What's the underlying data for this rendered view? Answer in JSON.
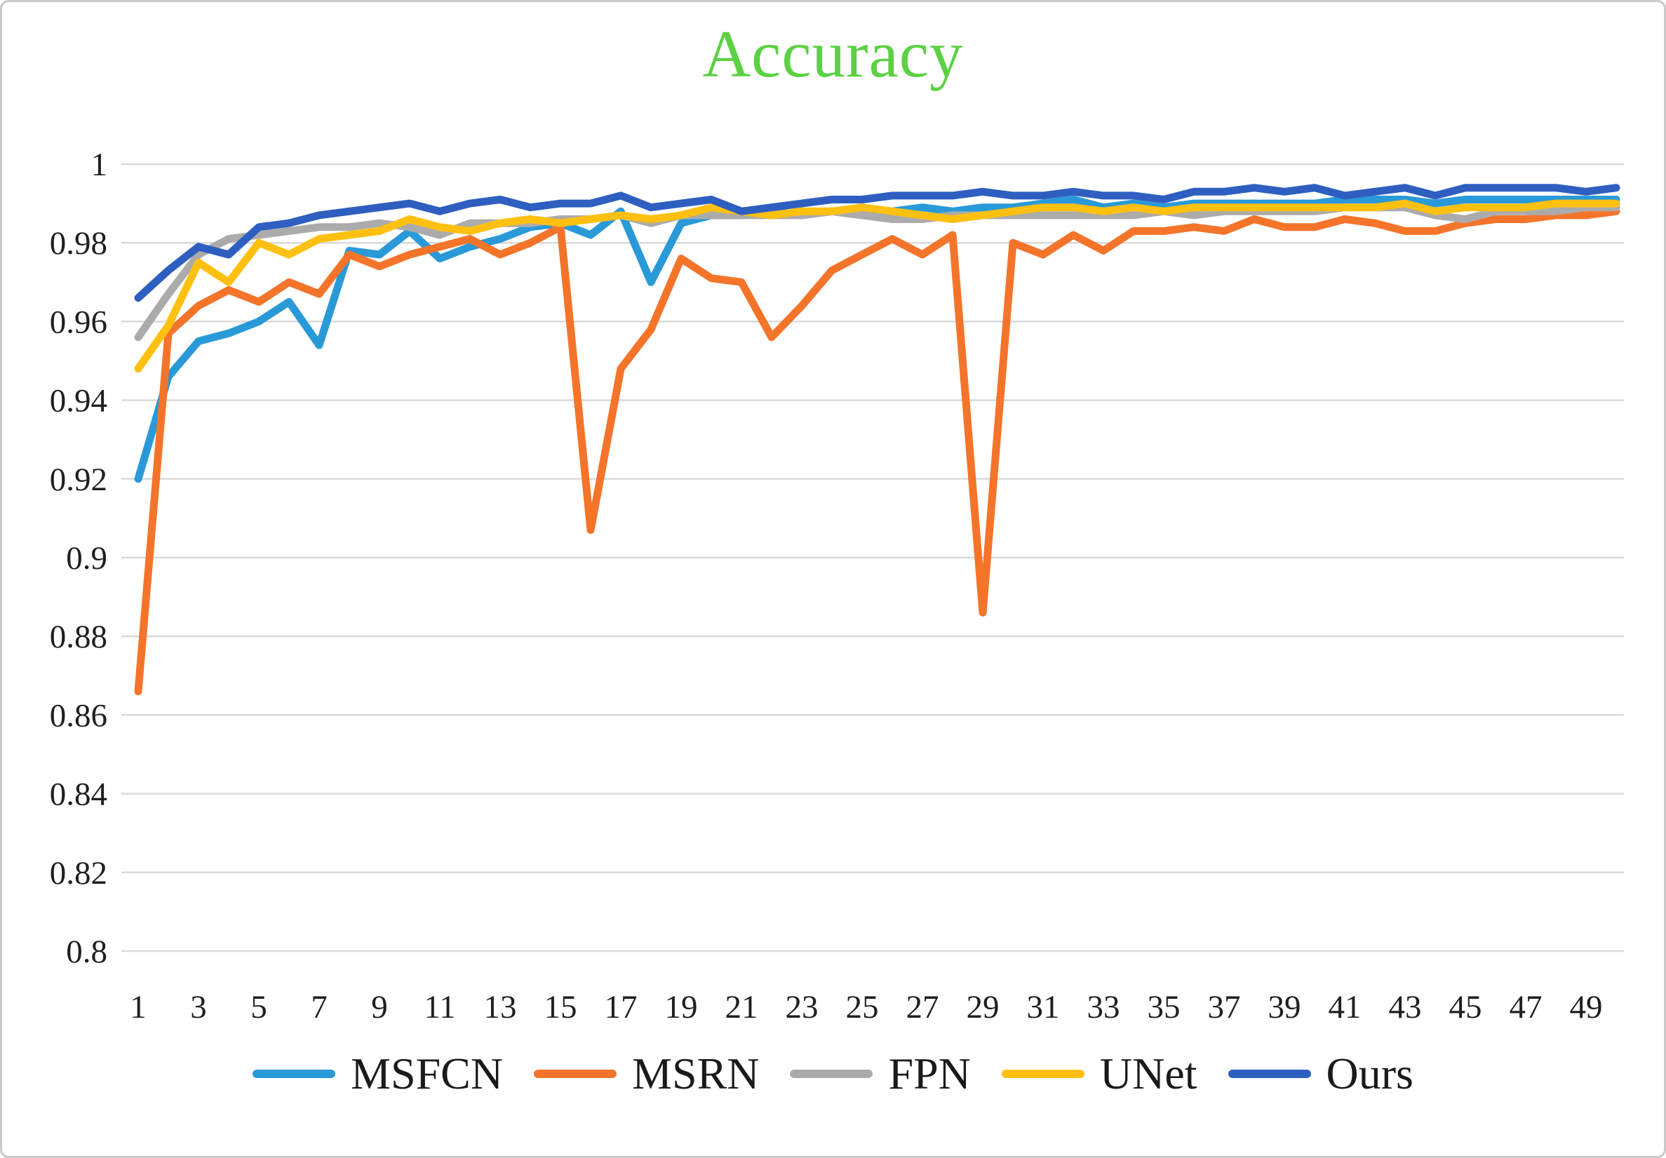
{
  "figure": {
    "border_color": "#c9c9c9",
    "background": "#ffffff"
  },
  "chart_data": {
    "type": "line",
    "title": "Accuracy",
    "title_color": "#5bd143",
    "gridline_color": "#d9d9d9",
    "tick_color": "#1f1f1f",
    "grid": true,
    "legend_position": "bottom",
    "x_range": [
      1,
      50
    ],
    "xticks": [
      1,
      3,
      5,
      7,
      9,
      11,
      13,
      15,
      17,
      19,
      21,
      23,
      25,
      27,
      29,
      31,
      33,
      35,
      37,
      39,
      41,
      43,
      45,
      47,
      49
    ],
    "ylim": [
      0.8,
      1.0
    ],
    "yticks": [
      {
        "label": "1",
        "value": 1.0
      },
      {
        "label": "0.98",
        "value": 0.98
      },
      {
        "label": "0.96",
        "value": 0.96
      },
      {
        "label": "0.94",
        "value": 0.94
      },
      {
        "label": "0.92",
        "value": 0.92
      },
      {
        "label": "0.9",
        "value": 0.9
      },
      {
        "label": "0.88",
        "value": 0.88
      },
      {
        "label": "0.86",
        "value": 0.86
      },
      {
        "label": "0.84",
        "value": 0.84
      },
      {
        "label": "0.82",
        "value": 0.82
      },
      {
        "label": "0.8",
        "value": 0.8
      }
    ],
    "series": [
      {
        "name": "MSFCN",
        "color": "#2999d8",
        "values": [
          0.92,
          0.946,
          0.955,
          0.957,
          0.96,
          0.965,
          0.954,
          0.978,
          0.977,
          0.983,
          0.976,
          0.979,
          0.981,
          0.984,
          0.985,
          0.982,
          0.988,
          0.97,
          0.985,
          0.987,
          0.987,
          0.988,
          0.987,
          0.988,
          0.987,
          0.988,
          0.989,
          0.988,
          0.989,
          0.989,
          0.99,
          0.991,
          0.989,
          0.99,
          0.989,
          0.99,
          0.99,
          0.99,
          0.99,
          0.99,
          0.991,
          0.991,
          0.991,
          0.99,
          0.991,
          0.991,
          0.991,
          0.991,
          0.991,
          0.991
        ]
      },
      {
        "name": "MSRN",
        "color": "#f4742a",
        "values": [
          0.866,
          0.957,
          0.964,
          0.968,
          0.965,
          0.97,
          0.967,
          0.977,
          0.974,
          0.977,
          0.979,
          0.981,
          0.977,
          0.98,
          0.984,
          0.907,
          0.948,
          0.958,
          0.976,
          0.971,
          0.97,
          0.956,
          0.964,
          0.973,
          0.977,
          0.981,
          0.977,
          0.982,
          0.886,
          0.98,
          0.977,
          0.982,
          0.978,
          0.983,
          0.983,
          0.984,
          0.983,
          0.986,
          0.984,
          0.984,
          0.986,
          0.985,
          0.983,
          0.983,
          0.985,
          0.986,
          0.986,
          0.987,
          0.987,
          0.988
        ]
      },
      {
        "name": "FPN",
        "color": "#ababab",
        "values": [
          0.956,
          0.967,
          0.977,
          0.981,
          0.982,
          0.983,
          0.984,
          0.984,
          0.985,
          0.984,
          0.982,
          0.985,
          0.985,
          0.985,
          0.986,
          0.986,
          0.987,
          0.985,
          0.987,
          0.987,
          0.987,
          0.987,
          0.987,
          0.988,
          0.987,
          0.986,
          0.986,
          0.987,
          0.987,
          0.987,
          0.987,
          0.987,
          0.987,
          0.987,
          0.988,
          0.987,
          0.988,
          0.988,
          0.988,
          0.988,
          0.989,
          0.989,
          0.989,
          0.987,
          0.986,
          0.988,
          0.988,
          0.988,
          0.989,
          0.989
        ]
      },
      {
        "name": "UNet",
        "color": "#ffc010",
        "values": [
          0.948,
          0.959,
          0.975,
          0.97,
          0.98,
          0.977,
          0.981,
          0.982,
          0.983,
          0.986,
          0.984,
          0.983,
          0.985,
          0.986,
          0.985,
          0.986,
          0.987,
          0.986,
          0.987,
          0.989,
          0.988,
          0.987,
          0.988,
          0.988,
          0.989,
          0.988,
          0.987,
          0.986,
          0.987,
          0.988,
          0.989,
          0.989,
          0.988,
          0.989,
          0.988,
          0.989,
          0.989,
          0.989,
          0.989,
          0.989,
          0.989,
          0.989,
          0.99,
          0.988,
          0.989,
          0.989,
          0.989,
          0.99,
          0.99,
          0.99
        ]
      },
      {
        "name": "Ours",
        "color": "#2e5fc0",
        "values": [
          0.966,
          0.973,
          0.979,
          0.977,
          0.984,
          0.985,
          0.987,
          0.988,
          0.989,
          0.99,
          0.988,
          0.99,
          0.991,
          0.989,
          0.99,
          0.99,
          0.992,
          0.989,
          0.99,
          0.991,
          0.988,
          0.989,
          0.99,
          0.991,
          0.991,
          0.992,
          0.992,
          0.992,
          0.993,
          0.992,
          0.992,
          0.993,
          0.992,
          0.992,
          0.991,
          0.993,
          0.993,
          0.994,
          0.993,
          0.994,
          0.992,
          0.993,
          0.994,
          0.992,
          0.994,
          0.994,
          0.994,
          0.994,
          0.993,
          0.994
        ]
      }
    ]
  }
}
